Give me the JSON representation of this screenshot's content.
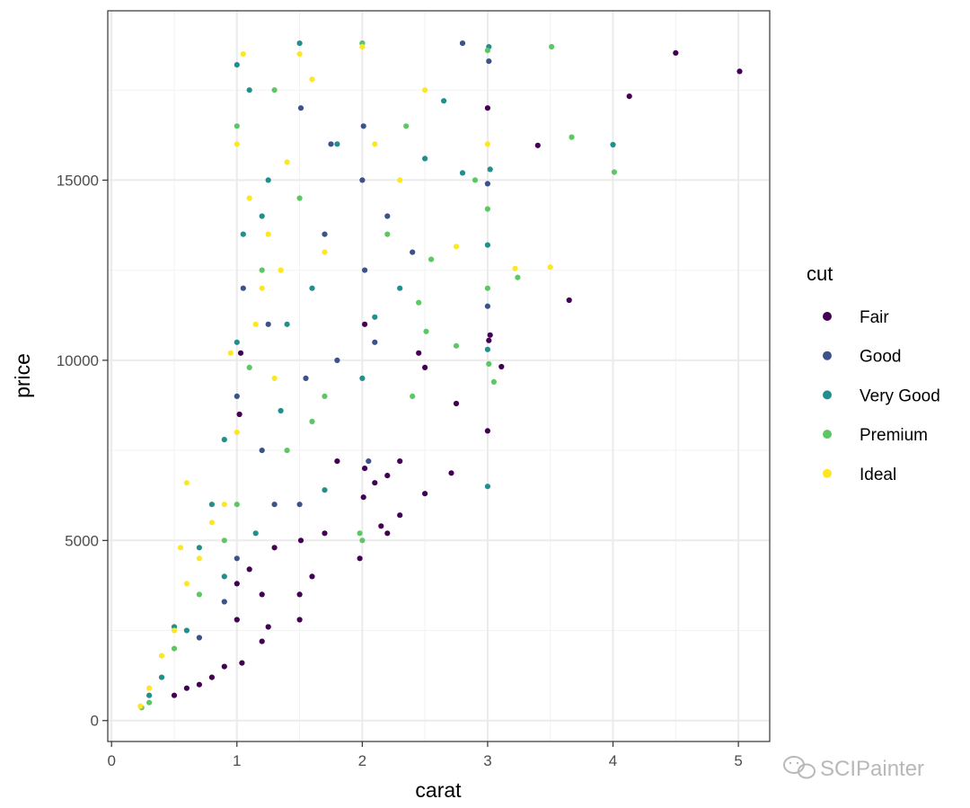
{
  "chart_data": {
    "type": "scatter",
    "title": "",
    "xlabel": "carat",
    "ylabel": "price",
    "xlim": [
      -0.03,
      5.25
    ],
    "ylim": [
      -580,
      19700
    ],
    "x_ticks": [
      0,
      1,
      2,
      3,
      4,
      5
    ],
    "x_tick_labels": [
      "0",
      "1",
      "2",
      "3",
      "4",
      "5"
    ],
    "y_ticks": [
      0,
      5000,
      10000,
      15000
    ],
    "y_tick_labels": [
      "0",
      "5000",
      "10000",
      "15000"
    ],
    "grid": true,
    "legend": {
      "title": "cut",
      "position": "right",
      "entries": [
        "Fair",
        "Good",
        "Very Good",
        "Premium",
        "Ideal"
      ]
    },
    "colors": {
      "Fair": "#440154",
      "Good": "#3b528b",
      "Very Good": "#21908c",
      "Premium": "#5dc863",
      "Ideal": "#fde725"
    },
    "series": [
      {
        "name": "Fair",
        "points": [
          [
            4.5,
            18531
          ],
          [
            5.01,
            18018
          ],
          [
            4.13,
            17329
          ],
          [
            3.4,
            15964
          ],
          [
            3.65,
            11668
          ],
          [
            3.11,
            9823
          ],
          [
            3.01,
            10550
          ],
          [
            3.0,
            8040
          ],
          [
            2.71,
            6870
          ],
          [
            2.5,
            6300
          ],
          [
            2.3,
            7200
          ],
          [
            2.75,
            8800
          ],
          [
            2.02,
            7000
          ],
          [
            1.98,
            4500
          ],
          [
            2.3,
            5700
          ],
          [
            3.02,
            10700
          ],
          [
            3.0,
            17000
          ],
          [
            1.5,
            2800
          ],
          [
            1.51,
            5000
          ],
          [
            1.7,
            5200
          ],
          [
            1.2,
            2200
          ],
          [
            1.04,
            1600
          ],
          [
            0.9,
            1500
          ],
          [
            0.8,
            1200
          ],
          [
            0.7,
            1000
          ],
          [
            0.6,
            900
          ],
          [
            0.5,
            700
          ],
          [
            1.5,
            3500
          ],
          [
            1.6,
            4000
          ],
          [
            1.0,
            2800
          ],
          [
            1.0,
            3800
          ],
          [
            1.2,
            3500
          ],
          [
            1.25,
            2600
          ],
          [
            1.1,
            4200
          ],
          [
            1.3,
            4800
          ],
          [
            2.01,
            6200
          ],
          [
            2.1,
            6600
          ],
          [
            2.2,
            6800
          ],
          [
            2.15,
            5400
          ],
          [
            1.8,
            7200
          ],
          [
            2.45,
            10200
          ],
          [
            2.5,
            9800
          ],
          [
            2.2,
            5200
          ],
          [
            1.02,
            8500
          ],
          [
            1.03,
            10200
          ],
          [
            2.02,
            11000
          ]
        ]
      },
      {
        "name": "Good",
        "points": [
          [
            2.8,
            18800
          ],
          [
            3.01,
            18300
          ],
          [
            3.0,
            14900
          ],
          [
            3.0,
            11500
          ],
          [
            2.01,
            16500
          ],
          [
            2.0,
            15000
          ],
          [
            2.2,
            14000
          ],
          [
            1.51,
            17000
          ],
          [
            1.7,
            13500
          ],
          [
            1.0,
            9000
          ],
          [
            1.2,
            7500
          ],
          [
            1.5,
            6000
          ],
          [
            2.02,
            12500
          ],
          [
            1.05,
            12000
          ],
          [
            1.8,
            10000
          ],
          [
            2.4,
            13000
          ],
          [
            0.7,
            2300
          ],
          [
            0.9,
            3300
          ],
          [
            1.0,
            4500
          ],
          [
            1.3,
            6000
          ],
          [
            2.05,
            7200
          ],
          [
            2.1,
            10500
          ],
          [
            1.55,
            9500
          ],
          [
            1.25,
            11000
          ],
          [
            1.75,
            16000
          ]
        ]
      },
      {
        "name": "Very Good",
        "points": [
          [
            3.01,
            18700
          ],
          [
            4.0,
            15984
          ],
          [
            3.02,
            15300
          ],
          [
            3.0,
            13200
          ],
          [
            3.0,
            10300
          ],
          [
            3.0,
            6500
          ],
          [
            2.8,
            15200
          ],
          [
            2.65,
            17200
          ],
          [
            2.5,
            15600
          ],
          [
            1.5,
            18800
          ],
          [
            1.0,
            18200
          ],
          [
            1.1,
            17500
          ],
          [
            2.0,
            18800
          ],
          [
            1.2,
            14000
          ],
          [
            1.4,
            11000
          ],
          [
            1.0,
            10500
          ],
          [
            0.9,
            7800
          ],
          [
            0.8,
            6000
          ],
          [
            0.7,
            4800
          ],
          [
            0.5,
            2600
          ],
          [
            0.4,
            1200
          ],
          [
            0.3,
            700
          ],
          [
            1.7,
            6400
          ],
          [
            2.0,
            9500
          ],
          [
            2.3,
            12000
          ],
          [
            1.8,
            16000
          ],
          [
            1.05,
            13500
          ],
          [
            1.25,
            15000
          ],
          [
            1.6,
            12000
          ],
          [
            2.1,
            11200
          ],
          [
            0.9,
            4000
          ],
          [
            1.15,
            5200
          ],
          [
            1.35,
            8600
          ],
          [
            0.6,
            2500
          ]
        ]
      },
      {
        "name": "Premium",
        "points": [
          [
            3.51,
            18701
          ],
          [
            3.67,
            16193
          ],
          [
            4.01,
            15223
          ],
          [
            3.24,
            12300
          ],
          [
            3.0,
            18600
          ],
          [
            2.9,
            15000
          ],
          [
            3.0,
            14200
          ],
          [
            3.0,
            12000
          ],
          [
            3.01,
            9900
          ],
          [
            3.05,
            9400
          ],
          [
            2.75,
            10400
          ],
          [
            2.51,
            10800
          ],
          [
            2.4,
            9000
          ],
          [
            2.0,
            5000
          ],
          [
            1.98,
            5200
          ],
          [
            1.5,
            14500
          ],
          [
            1.0,
            16500
          ],
          [
            2.2,
            13500
          ],
          [
            2.35,
            16500
          ],
          [
            1.2,
            12500
          ],
          [
            1.7,
            9000
          ],
          [
            1.4,
            7500
          ],
          [
            1.0,
            6000
          ],
          [
            0.9,
            5000
          ],
          [
            0.7,
            3500
          ],
          [
            0.5,
            2000
          ],
          [
            0.3,
            500
          ],
          [
            0.24,
            360
          ],
          [
            2.45,
            11600
          ],
          [
            2.0,
            18800
          ],
          [
            1.3,
            17500
          ],
          [
            1.6,
            8300
          ],
          [
            2.55,
            12800
          ],
          [
            1.1,
            9800
          ]
        ]
      },
      {
        "name": "Ideal",
        "points": [
          [
            3.5,
            12587
          ],
          [
            3.22,
            12545
          ],
          [
            2.75,
            13156
          ],
          [
            3.0,
            16000
          ],
          [
            2.5,
            17500
          ],
          [
            2.0,
            18700
          ],
          [
            1.5,
            18500
          ],
          [
            1.0,
            16000
          ],
          [
            1.1,
            14500
          ],
          [
            1.2,
            12000
          ],
          [
            1.3,
            9500
          ],
          [
            1.0,
            8000
          ],
          [
            0.9,
            6000
          ],
          [
            0.8,
            5500
          ],
          [
            0.7,
            4500
          ],
          [
            0.6,
            3800
          ],
          [
            0.5,
            2500
          ],
          [
            0.4,
            1800
          ],
          [
            0.3,
            900
          ],
          [
            0.23,
            400
          ],
          [
            1.7,
            13000
          ],
          [
            2.1,
            16000
          ],
          [
            1.05,
            18500
          ],
          [
            1.15,
            11000
          ],
          [
            1.25,
            13500
          ],
          [
            0.6,
            6600
          ],
          [
            0.55,
            4800
          ],
          [
            2.3,
            15000
          ],
          [
            1.6,
            17800
          ],
          [
            1.4,
            15500
          ],
          [
            0.95,
            10200
          ],
          [
            1.35,
            12500
          ]
        ]
      }
    ]
  },
  "watermark": {
    "text": "SCIPainter"
  }
}
